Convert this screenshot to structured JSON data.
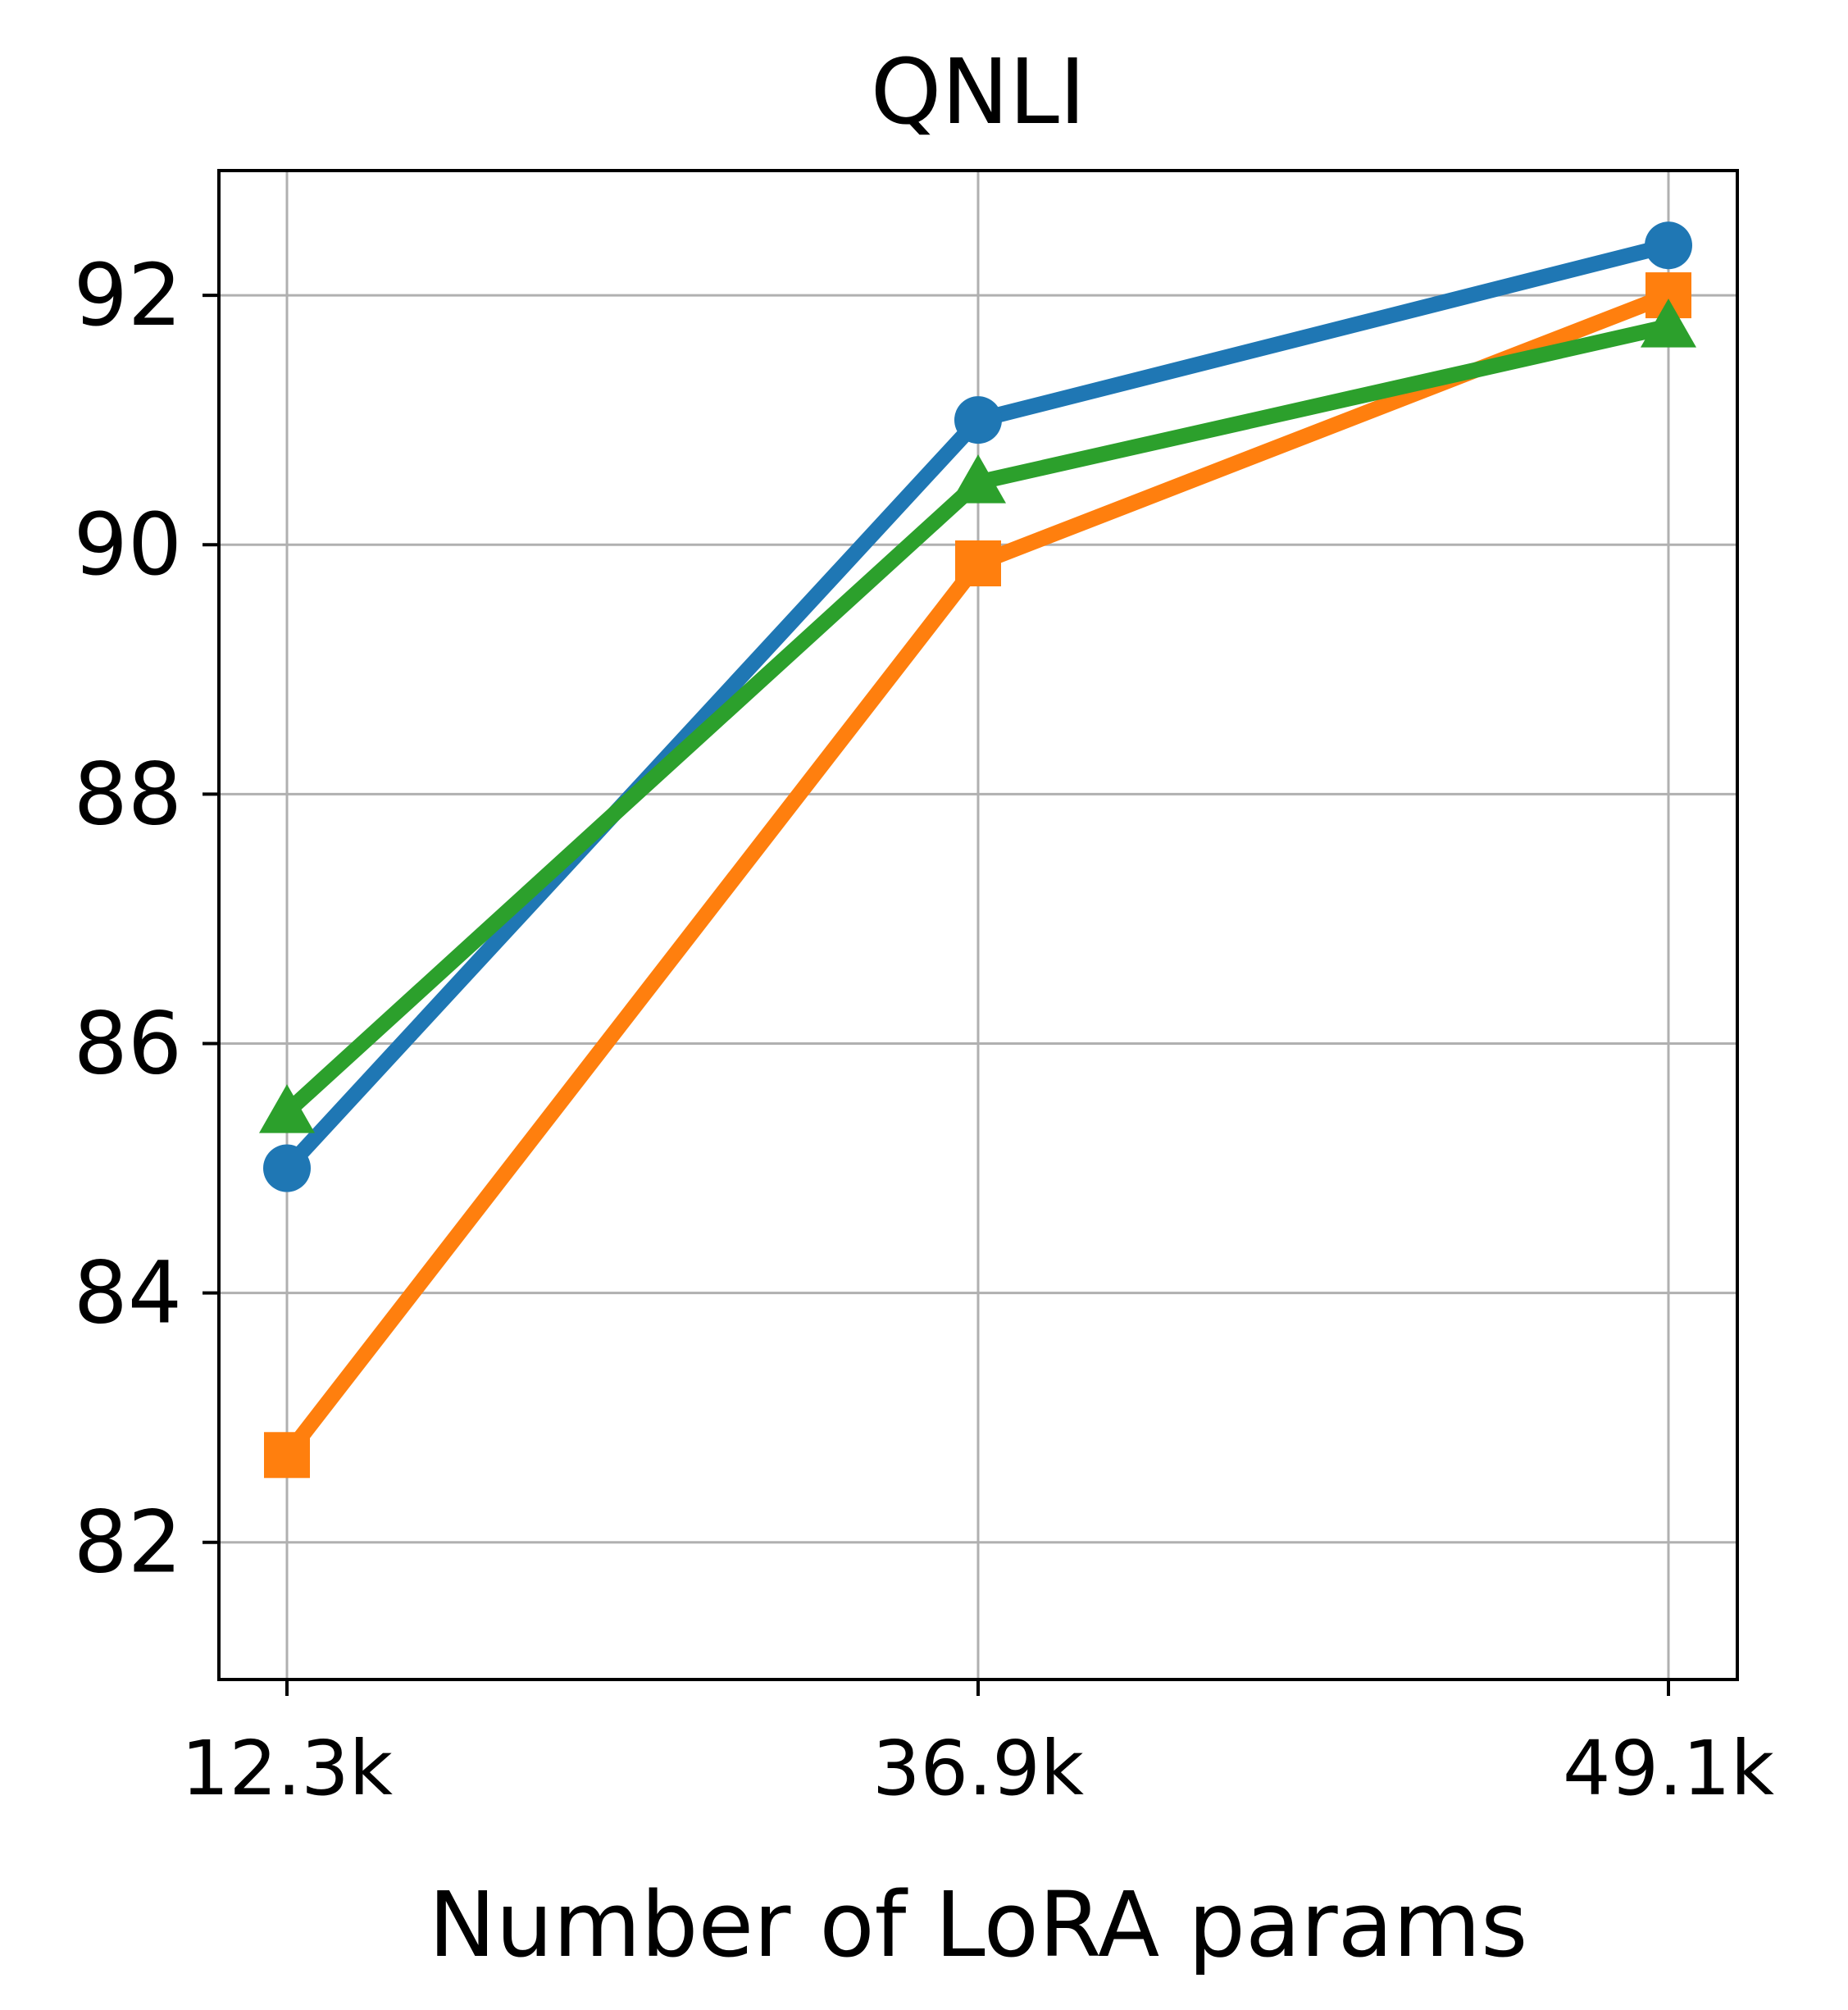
{
  "chart_data": {
    "type": "line",
    "title": "QNLI",
    "xlabel": "Number of LoRA params",
    "ylabel": "",
    "categories": [
      "12.3k",
      "36.9k",
      "49.1k"
    ],
    "ylim": [
      80.9,
      93.0
    ],
    "yticks": [
      82,
      84,
      86,
      88,
      90,
      92
    ],
    "grid": true,
    "series": [
      {
        "color": "#1f77b4",
        "marker": "circle",
        "values": [
          85.0,
          91.0,
          92.4
        ]
      },
      {
        "color": "#ff7f0e",
        "marker": "square",
        "values": [
          82.7,
          89.85,
          92.0
        ]
      },
      {
        "color": "#2ca02c",
        "marker": "triangle",
        "values": [
          85.45,
          90.5,
          91.75
        ]
      }
    ]
  }
}
